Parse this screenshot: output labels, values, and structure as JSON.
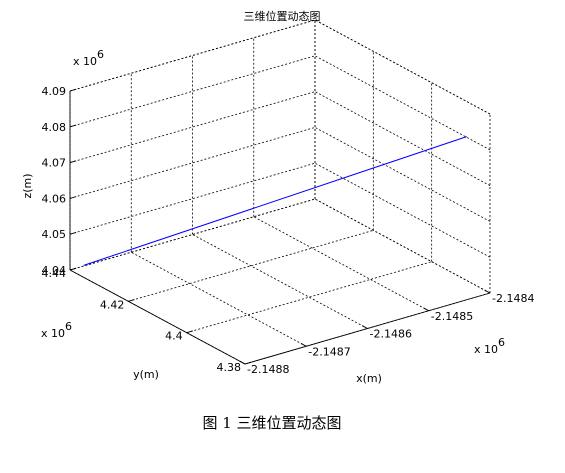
{
  "chart_data": {
    "type": "line3d",
    "title": "三维位置动态图",
    "xlabel": "x(m)",
    "ylabel": "y(m)",
    "zlabel": "z(m)",
    "x_multiplier": "x 10",
    "y_multiplier": "x 10",
    "z_multiplier": "x 10",
    "multiplier_exponent": "6",
    "xlim": [
      -2.1488,
      -2.1484
    ],
    "ylim": [
      4.38,
      4.44
    ],
    "zlim": [
      4.04,
      4.09
    ],
    "x_ticks": [
      "-2.1488",
      "-2.1487",
      "-2.1486",
      "-2.1485",
      "-2.1484"
    ],
    "y_ticks": [
      "4.38",
      "4.4",
      "4.42",
      "4.44"
    ],
    "z_ticks": [
      "4.04",
      "4.05",
      "4.06",
      "4.07",
      "4.08",
      "4.09"
    ],
    "grid": true,
    "series": [
      {
        "color": "#0000ff",
        "x": [
          -2.14878,
          -2.1484
        ],
        "y": [
          4.4395,
          4.388
        ],
        "z": [
          4.0405,
          4.0802
        ]
      }
    ]
  },
  "caption": "图 1  三维位置动态图"
}
